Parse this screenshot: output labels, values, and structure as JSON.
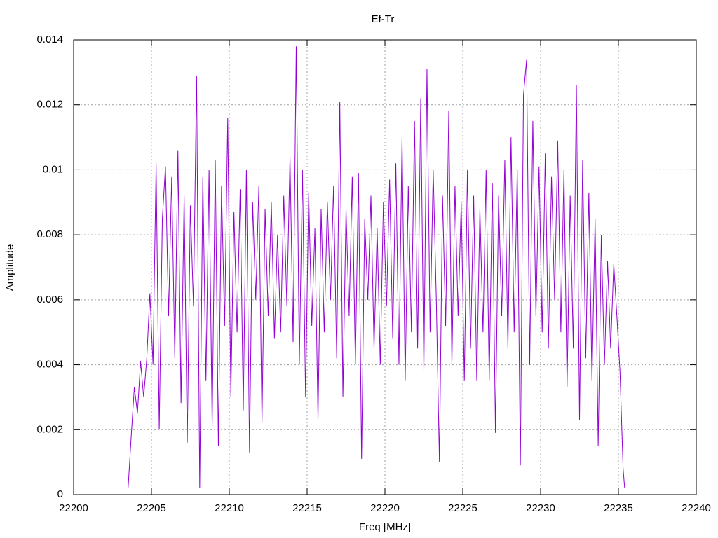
{
  "chart_data": {
    "type": "line",
    "title": "Ef-Tr",
    "x_label": "Freq [MHz]",
    "y_label": "Amplitude",
    "color": "#9400d3",
    "grid": true,
    "xlim": [
      22200,
      22240
    ],
    "xticks": [
      22200,
      22205,
      22210,
      22215,
      22220,
      22225,
      22230,
      22235,
      22240
    ],
    "ylim": [
      0,
      0.014
    ],
    "yticks": [
      0,
      0.002,
      0.004,
      0.006,
      0.008,
      0.01,
      0.012,
      0.014
    ],
    "x": [
      22203.5,
      22203.7,
      22203.9,
      22204.1,
      22204.3,
      22204.5,
      22204.7,
      22204.9,
      22205.1,
      22205.3,
      22205.5,
      22205.7,
      22205.9,
      22206.1,
      22206.3,
      22206.5,
      22206.7,
      22206.9,
      22207.1,
      22207.3,
      22207.5,
      22207.7,
      22207.9,
      22208.1,
      22208.3,
      22208.5,
      22208.7,
      22208.9,
      22209.1,
      22209.3,
      22209.5,
      22209.7,
      22209.9,
      22210.1,
      22210.3,
      22210.5,
      22210.7,
      22210.9,
      22211.1,
      22211.3,
      22211.5,
      22211.7,
      22211.9,
      22212.1,
      22212.3,
      22212.5,
      22212.7,
      22212.9,
      22213.1,
      22213.3,
      22213.5,
      22213.7,
      22213.9,
      22214.1,
      22214.3,
      22214.5,
      22214.7,
      22214.9,
      22215.1,
      22215.3,
      22215.5,
      22215.7,
      22215.9,
      22216.1,
      22216.3,
      22216.5,
      22216.7,
      22216.9,
      22217.1,
      22217.3,
      22217.5,
      22217.7,
      22217.9,
      22218.1,
      22218.3,
      22218.5,
      22218.7,
      22218.9,
      22219.1,
      22219.3,
      22219.5,
      22219.7,
      22219.9,
      22220.1,
      22220.3,
      22220.5,
      22220.7,
      22220.9,
      22221.1,
      22221.3,
      22221.5,
      22221.7,
      22221.9,
      22222.1,
      22222.3,
      22222.5,
      22222.7,
      22222.9,
      22223.1,
      22223.3,
      22223.5,
      22223.7,
      22223.9,
      22224.1,
      22224.3,
      22224.5,
      22224.7,
      22224.9,
      22225.1,
      22225.3,
      22225.5,
      22225.7,
      22225.9,
      22226.1,
      22226.3,
      22226.5,
      22226.7,
      22226.9,
      22227.1,
      22227.3,
      22227.5,
      22227.7,
      22227.9,
      22228.1,
      22228.3,
      22228.5,
      22228.7,
      22228.9,
      22229.1,
      22229.3,
      22229.5,
      22229.7,
      22229.9,
      22230.1,
      22230.3,
      22230.5,
      22230.7,
      22230.9,
      22231.1,
      22231.3,
      22231.5,
      22231.7,
      22231.9,
      22232.1,
      22232.3,
      22232.5,
      22232.7,
      22232.9,
      22233.1,
      22233.3,
      22233.5,
      22233.7,
      22233.9,
      22234.1,
      22234.3,
      22234.5,
      22234.7,
      22234.9,
      22235.1,
      22235.3,
      22235.4
    ],
    "values": [
      0.0002,
      0.0018,
      0.0033,
      0.0025,
      0.0041,
      0.003,
      0.0042,
      0.0062,
      0.004,
      0.0102,
      0.002,
      0.0085,
      0.0101,
      0.0055,
      0.0098,
      0.0042,
      0.0106,
      0.0028,
      0.0092,
      0.0016,
      0.0089,
      0.0058,
      0.0129,
      0.0002,
      0.0098,
      0.0035,
      0.01,
      0.0021,
      0.0103,
      0.0015,
      0.0095,
      0.0052,
      0.0116,
      0.003,
      0.0087,
      0.005,
      0.0094,
      0.0026,
      0.01,
      0.0013,
      0.009,
      0.006,
      0.0095,
      0.0022,
      0.0088,
      0.0055,
      0.009,
      0.0048,
      0.008,
      0.005,
      0.0092,
      0.0058,
      0.0104,
      0.0047,
      0.0138,
      0.004,
      0.01,
      0.003,
      0.0093,
      0.0052,
      0.0082,
      0.0023,
      0.0088,
      0.005,
      0.009,
      0.006,
      0.0095,
      0.0042,
      0.0121,
      0.003,
      0.0088,
      0.0055,
      0.0098,
      0.004,
      0.0099,
      0.0011,
      0.0085,
      0.006,
      0.0092,
      0.0045,
      0.0082,
      0.004,
      0.009,
      0.0058,
      0.0097,
      0.0048,
      0.0102,
      0.004,
      0.011,
      0.0035,
      0.0095,
      0.005,
      0.0115,
      0.0045,
      0.0122,
      0.0038,
      0.0131,
      0.005,
      0.01,
      0.006,
      0.001,
      0.0092,
      0.0052,
      0.0118,
      0.004,
      0.0095,
      0.0055,
      0.009,
      0.0035,
      0.01,
      0.0045,
      0.0092,
      0.0035,
      0.0088,
      0.005,
      0.01,
      0.0035,
      0.0096,
      0.0019,
      0.0092,
      0.0055,
      0.0103,
      0.0045,
      0.011,
      0.005,
      0.01,
      0.0009,
      0.0123,
      0.0134,
      0.004,
      0.0115,
      0.0055,
      0.0101,
      0.005,
      0.0105,
      0.0045,
      0.0098,
      0.006,
      0.0109,
      0.005,
      0.01,
      0.0033,
      0.0092,
      0.0045,
      0.0126,
      0.0023,
      0.0103,
      0.0042,
      0.0093,
      0.0035,
      0.0085,
      0.0015,
      0.008,
      0.004,
      0.0072,
      0.0045,
      0.0071,
      0.0055,
      0.0038,
      0.0008,
      0.0002
    ]
  }
}
